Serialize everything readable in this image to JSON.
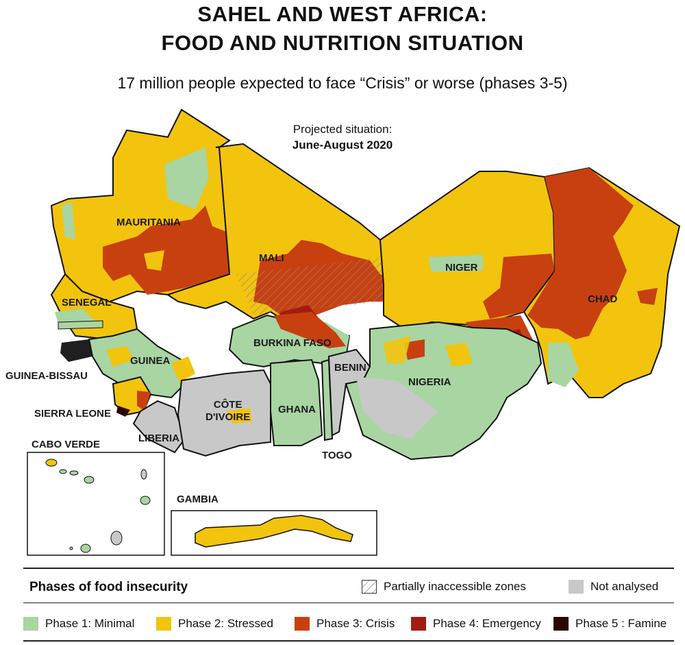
{
  "header": {
    "title_line1": "SAHEL AND WEST AFRICA:",
    "title_line2": "FOOD AND NUTRITION SITUATION",
    "subtitle": "17 million people expected to face “Crisis” or worse (phases 3-5)",
    "projection_label": "Projected situation:",
    "projection_period": "June-August 2020"
  },
  "countries": {
    "mauritania": "MAURITANIA",
    "mali": "MALI",
    "niger": "NIGER",
    "chad": "CHAD",
    "senegal": "SENEGAL",
    "burkina_faso": "BURKINA FASO",
    "guinea": "GUINEA",
    "benin": "BENIN",
    "nigeria": "NIGERIA",
    "guinea_bissau": "GUINEA-BISSAU",
    "cote_divoire": "CÔTE\nD'IVOIRE",
    "ghana": "GHANA",
    "sierra_leone": "SIERRA LEONE",
    "liberia": "LIBERIA",
    "togo": "TOGO"
  },
  "insets": {
    "cabo_verde": "CABO VERDE",
    "gambia": "GAMBIA"
  },
  "legend": {
    "title": "Phases of food insecurity",
    "inaccessible": "Partially inaccessible zones",
    "not_analysed": "Not analysed",
    "phase1": "Phase 1: Minimal",
    "phase2": "Phase 2: Stressed",
    "phase3": "Phase 3: Crisis",
    "phase4": "Phase 4: Emergency",
    "phase5": "Phase 5 : Famine"
  },
  "colors": {
    "phase1": "#a8d5a2",
    "phase2": "#f2c40d",
    "phase3": "#c8400f",
    "phase4": "#a31c12",
    "phase5": "#2a0505",
    "not_analysed": "#c8c8c8",
    "border": "#111111"
  }
}
